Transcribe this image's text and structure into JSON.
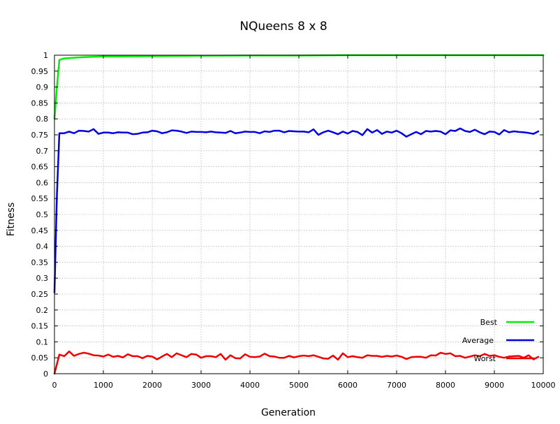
{
  "chart_data": {
    "type": "line",
    "title": "NQueens 8 x 8",
    "xlabel": "Generation",
    "ylabel": "Fitness",
    "xlim": [
      0,
      10000
    ],
    "ylim": [
      0,
      1
    ],
    "x_ticks": [
      0,
      1000,
      2000,
      3000,
      4000,
      5000,
      6000,
      7000,
      8000,
      9000,
      10000
    ],
    "y_ticks": [
      0,
      0.05,
      0.1,
      0.15,
      0.2,
      0.25,
      0.3,
      0.35,
      0.4,
      0.45,
      0.5,
      0.55,
      0.6,
      0.65,
      0.7,
      0.75,
      0.8,
      0.85,
      0.9,
      0.95,
      1
    ],
    "grid": true,
    "legend_position": "bottom-right",
    "series": [
      {
        "name": "Best",
        "color": "#00ee00",
        "points": [
          [
            0,
            0.8
          ],
          [
            50,
            0.9
          ],
          [
            100,
            0.985
          ],
          [
            200,
            0.99
          ],
          [
            400,
            0.992
          ],
          [
            600,
            0.994
          ],
          [
            1000,
            0.996
          ],
          [
            2000,
            0.997
          ],
          [
            3000,
            0.998
          ],
          [
            4000,
            0.999
          ],
          [
            5000,
            0.999
          ],
          [
            6000,
            1.0
          ],
          [
            8000,
            1.0
          ],
          [
            10000,
            1.0
          ]
        ]
      },
      {
        "name": "Average",
        "color": "#0000dd",
        "points": [
          [
            0,
            0.255
          ],
          [
            50,
            0.56
          ],
          [
            100,
            0.755
          ],
          [
            200,
            0.755
          ],
          [
            300,
            0.76
          ],
          [
            400,
            0.755
          ],
          [
            500,
            0.763
          ],
          [
            600,
            0.762
          ],
          [
            700,
            0.76
          ],
          [
            800,
            0.768
          ],
          [
            900,
            0.753
          ],
          [
            1000,
            0.757
          ],
          [
            1100,
            0.757
          ],
          [
            1200,
            0.755
          ],
          [
            1300,
            0.758
          ],
          [
            1400,
            0.757
          ],
          [
            1500,
            0.757
          ],
          [
            1600,
            0.752
          ],
          [
            1700,
            0.753
          ],
          [
            1800,
            0.757
          ],
          [
            1900,
            0.758
          ],
          [
            2000,
            0.763
          ],
          [
            2100,
            0.761
          ],
          [
            2200,
            0.755
          ],
          [
            2300,
            0.758
          ],
          [
            2400,
            0.764
          ],
          [
            2500,
            0.763
          ],
          [
            2600,
            0.76
          ],
          [
            2700,
            0.756
          ],
          [
            2800,
            0.76
          ],
          [
            2900,
            0.759
          ],
          [
            3000,
            0.759
          ],
          [
            3100,
            0.758
          ],
          [
            3200,
            0.76
          ],
          [
            3300,
            0.758
          ],
          [
            3400,
            0.757
          ],
          [
            3500,
            0.756
          ],
          [
            3600,
            0.762
          ],
          [
            3700,
            0.755
          ],
          [
            3800,
            0.757
          ],
          [
            3900,
            0.76
          ],
          [
            4000,
            0.759
          ],
          [
            4100,
            0.759
          ],
          [
            4200,
            0.755
          ],
          [
            4300,
            0.761
          ],
          [
            4400,
            0.759
          ],
          [
            4500,
            0.763
          ],
          [
            4600,
            0.763
          ],
          [
            4700,
            0.758
          ],
          [
            4800,
            0.762
          ],
          [
            4900,
            0.761
          ],
          [
            5000,
            0.76
          ],
          [
            5100,
            0.76
          ],
          [
            5200,
            0.758
          ],
          [
            5300,
            0.767
          ],
          [
            5400,
            0.75
          ],
          [
            5500,
            0.758
          ],
          [
            5600,
            0.763
          ],
          [
            5700,
            0.758
          ],
          [
            5800,
            0.752
          ],
          [
            5900,
            0.76
          ],
          [
            6000,
            0.754
          ],
          [
            6100,
            0.762
          ],
          [
            6200,
            0.759
          ],
          [
            6300,
            0.749
          ],
          [
            6400,
            0.768
          ],
          [
            6500,
            0.757
          ],
          [
            6600,
            0.765
          ],
          [
            6700,
            0.753
          ],
          [
            6800,
            0.76
          ],
          [
            6900,
            0.757
          ],
          [
            7000,
            0.763
          ],
          [
            7100,
            0.755
          ],
          [
            7200,
            0.744
          ],
          [
            7300,
            0.752
          ],
          [
            7400,
            0.759
          ],
          [
            7500,
            0.752
          ],
          [
            7600,
            0.762
          ],
          [
            7700,
            0.76
          ],
          [
            7800,
            0.762
          ],
          [
            7900,
            0.76
          ],
          [
            8000,
            0.752
          ],
          [
            8100,
            0.764
          ],
          [
            8200,
            0.762
          ],
          [
            8300,
            0.77
          ],
          [
            8400,
            0.762
          ],
          [
            8500,
            0.759
          ],
          [
            8600,
            0.766
          ],
          [
            8700,
            0.758
          ],
          [
            8800,
            0.752
          ],
          [
            8900,
            0.76
          ],
          [
            9000,
            0.759
          ],
          [
            9100,
            0.751
          ],
          [
            9200,
            0.765
          ],
          [
            9300,
            0.758
          ],
          [
            9400,
            0.761
          ],
          [
            9500,
            0.759
          ],
          [
            9600,
            0.758
          ],
          [
            9700,
            0.756
          ],
          [
            9800,
            0.753
          ],
          [
            9900,
            0.761
          ]
        ]
      },
      {
        "name": "Worst",
        "color": "#ee0000",
        "points": [
          [
            0,
            0.0
          ],
          [
            100,
            0.06
          ],
          [
            200,
            0.055
          ],
          [
            300,
            0.07
          ],
          [
            400,
            0.056
          ],
          [
            500,
            0.062
          ],
          [
            600,
            0.066
          ],
          [
            700,
            0.063
          ],
          [
            800,
            0.058
          ],
          [
            900,
            0.057
          ],
          [
            1000,
            0.054
          ],
          [
            1100,
            0.06
          ],
          [
            1200,
            0.053
          ],
          [
            1300,
            0.056
          ],
          [
            1400,
            0.051
          ],
          [
            1500,
            0.061
          ],
          [
            1600,
            0.055
          ],
          [
            1700,
            0.055
          ],
          [
            1800,
            0.049
          ],
          [
            1900,
            0.056
          ],
          [
            2000,
            0.054
          ],
          [
            2100,
            0.045
          ],
          [
            2200,
            0.054
          ],
          [
            2300,
            0.062
          ],
          [
            2400,
            0.052
          ],
          [
            2500,
            0.064
          ],
          [
            2600,
            0.058
          ],
          [
            2700,
            0.052
          ],
          [
            2800,
            0.062
          ],
          [
            2900,
            0.06
          ],
          [
            3000,
            0.05
          ],
          [
            3100,
            0.055
          ],
          [
            3200,
            0.055
          ],
          [
            3300,
            0.052
          ],
          [
            3400,
            0.062
          ],
          [
            3500,
            0.044
          ],
          [
            3600,
            0.058
          ],
          [
            3700,
            0.049
          ],
          [
            3800,
            0.048
          ],
          [
            3900,
            0.061
          ],
          [
            4000,
            0.053
          ],
          [
            4100,
            0.052
          ],
          [
            4200,
            0.054
          ],
          [
            4300,
            0.063
          ],
          [
            4400,
            0.055
          ],
          [
            4500,
            0.054
          ],
          [
            4600,
            0.05
          ],
          [
            4700,
            0.05
          ],
          [
            4800,
            0.056
          ],
          [
            4900,
            0.051
          ],
          [
            5000,
            0.055
          ],
          [
            5100,
            0.057
          ],
          [
            5200,
            0.055
          ],
          [
            5300,
            0.058
          ],
          [
            5400,
            0.053
          ],
          [
            5500,
            0.048
          ],
          [
            5600,
            0.047
          ],
          [
            5700,
            0.057
          ],
          [
            5800,
            0.044
          ],
          [
            5900,
            0.064
          ],
          [
            6000,
            0.052
          ],
          [
            6100,
            0.055
          ],
          [
            6200,
            0.052
          ],
          [
            6300,
            0.05
          ],
          [
            6400,
            0.058
          ],
          [
            6500,
            0.056
          ],
          [
            6600,
            0.056
          ],
          [
            6700,
            0.053
          ],
          [
            6800,
            0.056
          ],
          [
            6900,
            0.054
          ],
          [
            7000,
            0.057
          ],
          [
            7100,
            0.053
          ],
          [
            7200,
            0.046
          ],
          [
            7300,
            0.052
          ],
          [
            7400,
            0.053
          ],
          [
            7500,
            0.053
          ],
          [
            7600,
            0.05
          ],
          [
            7700,
            0.058
          ],
          [
            7800,
            0.057
          ],
          [
            7900,
            0.066
          ],
          [
            8000,
            0.062
          ],
          [
            8100,
            0.064
          ],
          [
            8200,
            0.055
          ],
          [
            8300,
            0.056
          ],
          [
            8400,
            0.05
          ],
          [
            8500,
            0.054
          ],
          [
            8600,
            0.058
          ],
          [
            8700,
            0.055
          ],
          [
            8800,
            0.062
          ],
          [
            8900,
            0.056
          ],
          [
            9000,
            0.058
          ],
          [
            9100,
            0.053
          ],
          [
            9200,
            0.05
          ],
          [
            9300,
            0.054
          ],
          [
            9400,
            0.055
          ],
          [
            9500,
            0.056
          ],
          [
            9600,
            0.05
          ],
          [
            9700,
            0.058
          ],
          [
            9800,
            0.045
          ],
          [
            9900,
            0.053
          ]
        ]
      }
    ]
  }
}
